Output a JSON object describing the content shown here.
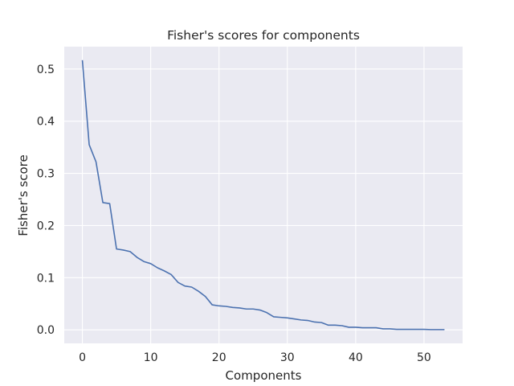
{
  "chart_data": {
    "type": "line",
    "title": "Fisher's scores for components",
    "xlabel": "Components",
    "ylabel": "Fisher's score",
    "xlim": [
      -2.65,
      55.65
    ],
    "ylim": [
      -0.0259,
      0.5429
    ],
    "xticks": [
      0,
      10,
      20,
      30,
      40,
      50
    ],
    "yticks": [
      0.0,
      0.1,
      0.2,
      0.3,
      0.4,
      0.5
    ],
    "xtick_labels": [
      "0",
      "10",
      "20",
      "30",
      "40",
      "50"
    ],
    "ytick_labels": [
      "0.0",
      "0.1",
      "0.2",
      "0.3",
      "0.4",
      "0.5"
    ],
    "grid": true,
    "background": "#eaeaf2",
    "grid_color": "#ffffff",
    "series": [
      {
        "color": "#4c72b0",
        "x": [
          0,
          1,
          2,
          3,
          4,
          5,
          6,
          7,
          8,
          9,
          10,
          11,
          12,
          13,
          14,
          15,
          16,
          17,
          18,
          19,
          20,
          21,
          22,
          23,
          24,
          25,
          26,
          27,
          28,
          29,
          30,
          31,
          32,
          33,
          34,
          35,
          36,
          37,
          38,
          39,
          40,
          41,
          42,
          43,
          44,
          45,
          46,
          47,
          48,
          49,
          50,
          51,
          52,
          53
        ],
        "values": [
          0.517,
          0.355,
          0.322,
          0.244,
          0.242,
          0.155,
          0.153,
          0.15,
          0.139,
          0.131,
          0.127,
          0.119,
          0.113,
          0.106,
          0.091,
          0.084,
          0.082,
          0.074,
          0.064,
          0.048,
          0.046,
          0.045,
          0.043,
          0.042,
          0.04,
          0.04,
          0.038,
          0.033,
          0.025,
          0.024,
          0.023,
          0.021,
          0.019,
          0.018,
          0.015,
          0.014,
          0.009,
          0.009,
          0.008,
          0.005,
          0.005,
          0.004,
          0.004,
          0.004,
          0.002,
          0.002,
          0.001,
          0.001,
          0.001,
          0.001,
          0.001,
          0.0005,
          0.0005,
          0.0005
        ]
      }
    ]
  }
}
